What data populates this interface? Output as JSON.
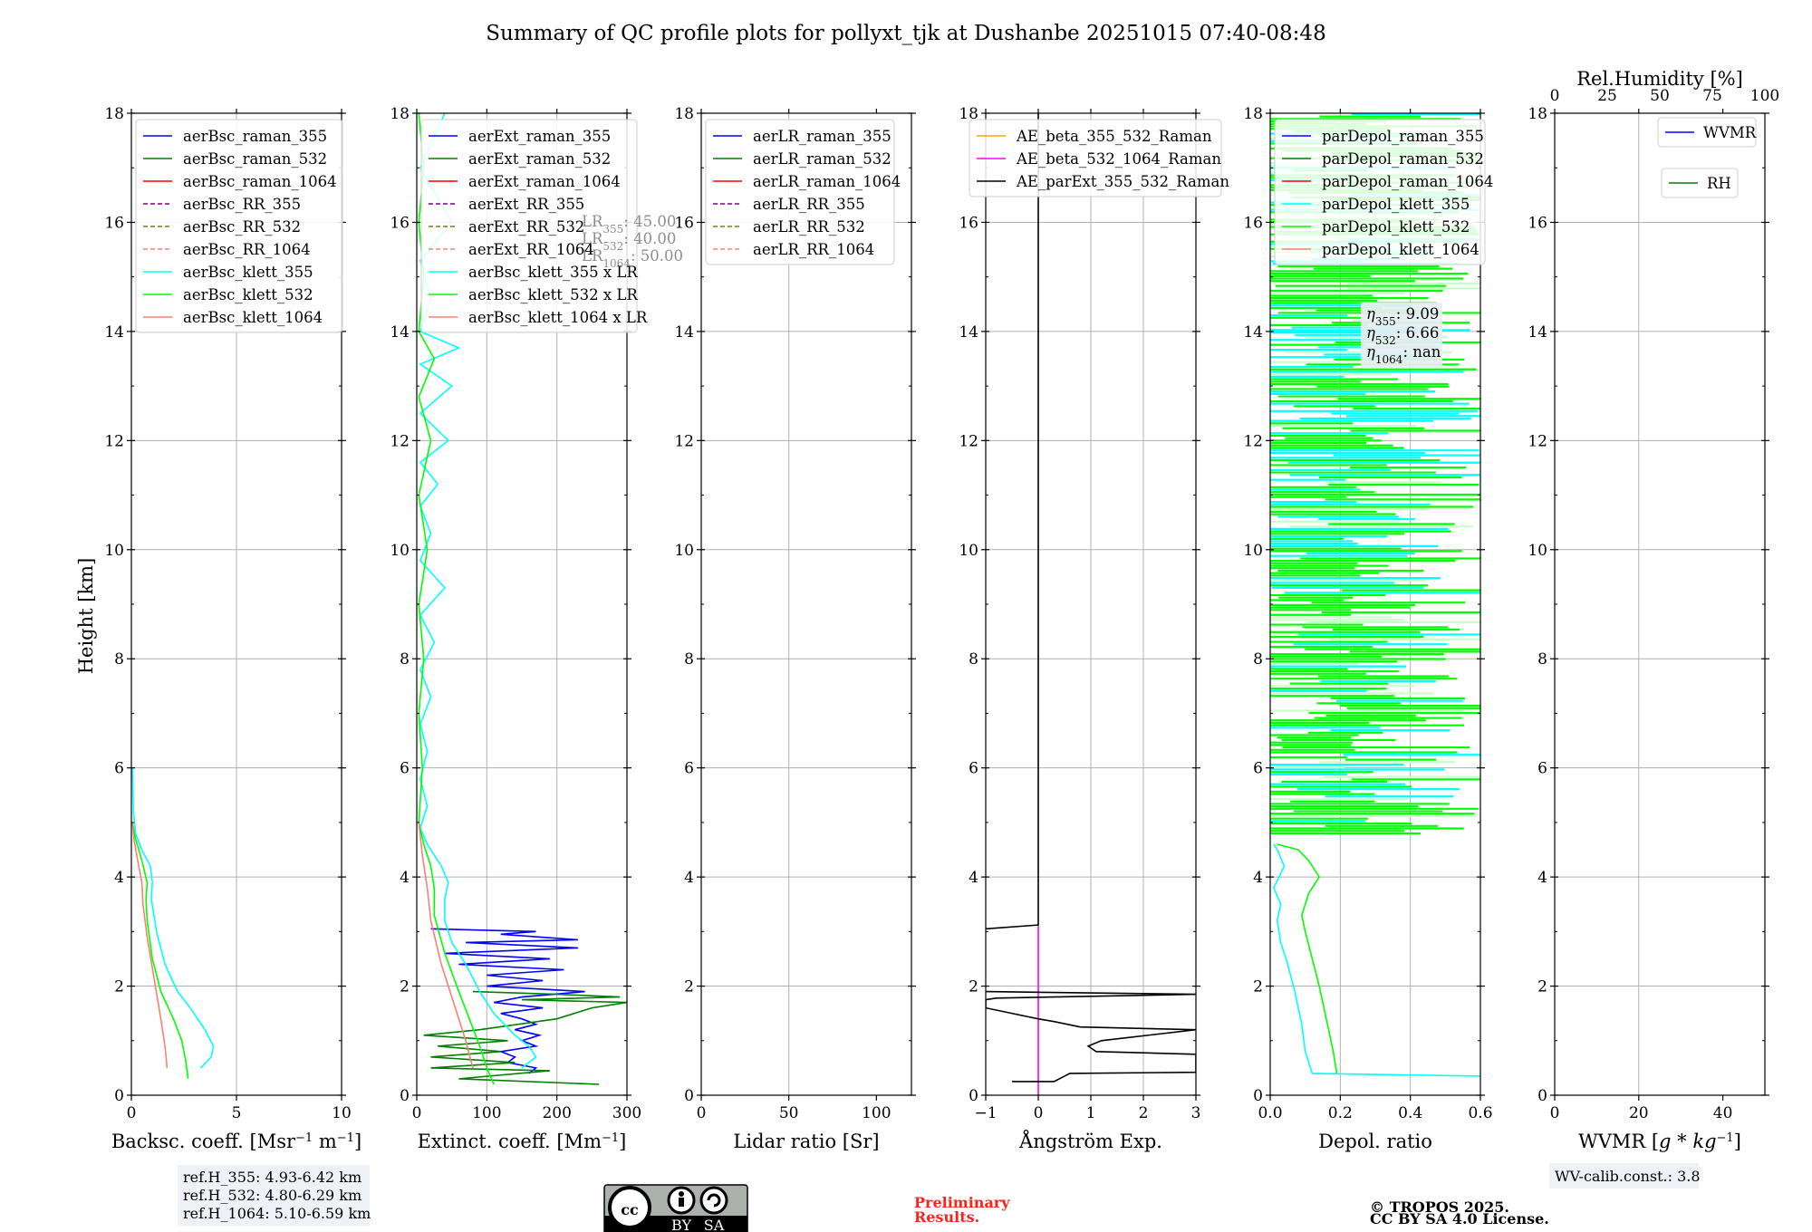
{
  "title": "Summary of QC profile plots for pollyxt_tjk at Dushanbe 20251015 07:40-08:48",
  "ylabel": "Height [km]",
  "yticks": [
    "0",
    "2",
    "4",
    "6",
    "8",
    "10",
    "12",
    "14",
    "16",
    "18"
  ],
  "colors": {
    "blue": "#0000ff",
    "green": "#008000",
    "red": "#ff0000",
    "purple": "#800080",
    "olive": "#808000",
    "salmon": "#fa8072",
    "cyan": "#00ffff",
    "lime": "#00ff00",
    "orange": "#ffa500",
    "magenta": "#ff00ff",
    "black": "#000000"
  },
  "chart_data": [
    {
      "type": "line",
      "xlabel_parts": [
        "Backsc. coeff. [Msr",
        "−1",
        " m",
        "−1",
        "]"
      ],
      "xlim": [
        0,
        10
      ],
      "xticks": [
        "0",
        "5",
        "10"
      ],
      "ylim": [
        0,
        18
      ],
      "legend": [
        "aerBsc_raman_355",
        "aerBsc_raman_532",
        "aerBsc_raman_1064",
        "aerBsc_RR_355",
        "aerBsc_RR_532",
        "aerBsc_RR_1064",
        "aerBsc_klett_355",
        "aerBsc_klett_532",
        "aerBsc_klett_1064"
      ],
      "series": [
        {
          "name": "aerBsc_klett_355",
          "color": "cyan",
          "points": [
            [
              3.3,
              0.5
            ],
            [
              3.8,
              0.7
            ],
            [
              3.9,
              0.9
            ],
            [
              3.5,
              1.2
            ],
            [
              2.8,
              1.6
            ],
            [
              2.2,
              1.9
            ],
            [
              1.6,
              2.4
            ],
            [
              1.2,
              3.0
            ],
            [
              0.95,
              3.6
            ],
            [
              1.0,
              3.9
            ],
            [
              0.9,
              4.2
            ],
            [
              0.5,
              4.5
            ],
            [
              0.2,
              4.8
            ],
            [
              0.1,
              5.2
            ],
            [
              0.05,
              6.0
            ]
          ]
        },
        {
          "name": "aerBsc_klett_532",
          "color": "lime",
          "points": [
            [
              2.7,
              0.3
            ],
            [
              2.6,
              0.6
            ],
            [
              2.4,
              1.0
            ],
            [
              2.0,
              1.4
            ],
            [
              1.4,
              1.9
            ],
            [
              1.0,
              2.5
            ],
            [
              0.75,
              3.2
            ],
            [
              0.7,
              3.6
            ],
            [
              0.75,
              3.9
            ],
            [
              0.5,
              4.3
            ],
            [
              0.2,
              4.7
            ],
            [
              0.05,
              5.0
            ]
          ]
        },
        {
          "name": "aerBsc_klett_1064",
          "color": "salmon",
          "points": [
            [
              1.7,
              0.5
            ],
            [
              1.6,
              0.9
            ],
            [
              1.4,
              1.4
            ],
            [
              1.1,
              2.1
            ],
            [
              0.75,
              2.9
            ],
            [
              0.55,
              3.5
            ],
            [
              0.5,
              3.9
            ],
            [
              0.3,
              4.3
            ],
            [
              0.12,
              4.7
            ],
            [
              0.05,
              5.0
            ]
          ]
        }
      ]
    },
    {
      "type": "line",
      "xlabel_parts": [
        "Extinct. coeff. [Mm",
        "−1",
        "]"
      ],
      "xlim": [
        0,
        300
      ],
      "xticks": [
        "0",
        "100",
        "200",
        "300"
      ],
      "ylim": [
        0,
        18
      ],
      "legend": [
        "aerExt_raman_355",
        "aerExt_raman_532",
        "aerExt_raman_1064",
        "aerExt_RR_355",
        "aerExt_RR_532",
        "aerExt_RR_1064",
        "aerBsc_klett_355 x LR",
        "aerBsc_klett_532 x LR",
        "aerBsc_klett_1064 x LR"
      ],
      "lr_note": [
        [
          "LR",
          "355",
          ": 45.00"
        ],
        [
          "LR",
          "532",
          ": 40.00"
        ],
        [
          "LR",
          "1064",
          ": 50.00"
        ]
      ],
      "series": [
        {
          "name": "aerExt_raman_355",
          "color": "blue",
          "points": [
            [
              160,
              0.4
            ],
            [
              170,
              0.5
            ],
            [
              130,
              0.6
            ],
            [
              140,
              0.7
            ],
            [
              120,
              0.8
            ],
            [
              170,
              0.9
            ],
            [
              150,
              1.0
            ],
            [
              175,
              1.1
            ],
            [
              140,
              1.2
            ],
            [
              170,
              1.3
            ],
            [
              150,
              1.4
            ],
            [
              120,
              1.5
            ],
            [
              180,
              1.6
            ],
            [
              110,
              1.7
            ],
            [
              150,
              1.8
            ],
            [
              240,
              1.9
            ],
            [
              100,
              2.0
            ],
            [
              180,
              2.1
            ],
            [
              100,
              2.2
            ],
            [
              210,
              2.3
            ],
            [
              60,
              2.4
            ],
            [
              190,
              2.5
            ],
            [
              40,
              2.6
            ],
            [
              230,
              2.7
            ],
            [
              70,
              2.8
            ],
            [
              230,
              2.85
            ],
            [
              120,
              2.95
            ],
            [
              170,
              3.0
            ],
            [
              20,
              3.05
            ]
          ]
        },
        {
          "name": "aerExt_raman_532",
          "color": "green",
          "points": [
            [
              260,
              0.2
            ],
            [
              60,
              0.3
            ],
            [
              190,
              0.45
            ],
            [
              20,
              0.5
            ],
            [
              140,
              0.6
            ],
            [
              20,
              0.7
            ],
            [
              120,
              0.8
            ],
            [
              30,
              0.9
            ],
            [
              130,
              1.0
            ],
            [
              10,
              1.1
            ],
            [
              90,
              1.2
            ],
            [
              200,
              1.4
            ],
            [
              250,
              1.6
            ],
            [
              300,
              1.7
            ],
            [
              150,
              1.75
            ],
            [
              290,
              1.8
            ],
            [
              200,
              1.85
            ],
            [
              80,
              1.9
            ]
          ]
        },
        {
          "name": "aerBsc_klett_355 x LR",
          "color": "cyan",
          "points": [
            [
              150,
              0.5
            ],
            [
              170,
              0.7
            ],
            [
              160,
              0.9
            ],
            [
              140,
              1.1
            ],
            [
              110,
              1.5
            ],
            [
              90,
              1.9
            ],
            [
              70,
              2.4
            ],
            [
              50,
              2.8
            ],
            [
              40,
              3.2
            ],
            [
              40,
              3.6
            ],
            [
              45,
              3.9
            ],
            [
              35,
              4.2
            ],
            [
              15,
              4.6
            ],
            [
              5,
              4.9
            ],
            [
              15,
              5.3
            ],
            [
              5,
              5.8
            ],
            [
              15,
              6.3
            ],
            [
              5,
              6.8
            ],
            [
              20,
              7.3
            ],
            [
              5,
              7.8
            ],
            [
              25,
              8.3
            ],
            [
              5,
              8.8
            ],
            [
              40,
              9.3
            ],
            [
              5,
              9.8
            ],
            [
              20,
              10.3
            ],
            [
              5,
              10.8
            ],
            [
              30,
              11.2
            ],
            [
              5,
              11.6
            ],
            [
              45,
              12.0
            ],
            [
              5,
              12.5
            ],
            [
              50,
              13.0
            ],
            [
              5,
              13.4
            ],
            [
              60,
              13.7
            ],
            [
              5,
              14.0
            ],
            [
              20,
              14.6
            ],
            [
              5,
              15.3
            ],
            [
              50,
              16.0
            ],
            [
              5,
              17.0
            ],
            [
              40,
              18.0
            ]
          ]
        },
        {
          "name": "aerBsc_klett_532 x LR",
          "color": "lime",
          "points": [
            [
              110,
              0.2
            ],
            [
              100,
              0.5
            ],
            [
              90,
              0.9
            ],
            [
              75,
              1.4
            ],
            [
              60,
              1.9
            ],
            [
              40,
              2.6
            ],
            [
              25,
              3.3
            ],
            [
              25,
              3.8
            ],
            [
              20,
              4.2
            ],
            [
              10,
              4.6
            ],
            [
              3,
              5.0
            ],
            [
              8,
              6.0
            ],
            [
              3,
              7.0
            ],
            [
              10,
              8.0
            ],
            [
              3,
              9.0
            ],
            [
              15,
              10.0
            ],
            [
              3,
              11.0
            ],
            [
              20,
              12.0
            ],
            [
              3,
              12.8
            ],
            [
              25,
              13.5
            ],
            [
              3,
              14.0
            ],
            [
              10,
              15.0
            ],
            [
              3,
              16.0
            ],
            [
              10,
              17.0
            ],
            [
              3,
              18.0
            ]
          ]
        },
        {
          "name": "aerBsc_klett_1064 x LR",
          "color": "salmon",
          "points": [
            [
              80,
              0.5
            ],
            [
              70,
              1.0
            ],
            [
              55,
              1.6
            ],
            [
              35,
              2.4
            ],
            [
              20,
              3.2
            ],
            [
              15,
              3.8
            ],
            [
              8,
              4.4
            ],
            [
              3,
              5.0
            ]
          ]
        }
      ]
    },
    {
      "type": "line",
      "xlabel_parts": [
        "Lidar ratio [Sr]"
      ],
      "xlim": [
        0,
        120
      ],
      "xticks": [
        "0",
        "50",
        "100"
      ],
      "ylim": [
        0,
        18
      ],
      "legend": [
        "aerLR_raman_355",
        "aerLR_raman_532",
        "aerLR_raman_1064",
        "aerLR_RR_355",
        "aerLR_RR_532",
        "aerLR_RR_1064"
      ],
      "series": []
    },
    {
      "type": "line",
      "xlabel_parts": [
        "Ångström Exp."
      ],
      "xlim": [
        -1,
        3
      ],
      "xticks": [
        "−1",
        "0",
        "1",
        "2",
        "3"
      ],
      "ylim": [
        0,
        18
      ],
      "legend": [
        "AE_beta_355_532_Raman",
        "AE_beta_532_1064_Raman",
        "AE_parExt_355_532_Raman"
      ],
      "series": [
        {
          "name": "AE_beta_532_1064_Raman",
          "color": "magenta",
          "points": [
            [
              0,
              0.0
            ],
            [
              0,
              3.1
            ]
          ]
        },
        {
          "name": "AE_parExt_355_532_Raman",
          "color": "black",
          "points": [
            [
              -0.5,
              0.25
            ],
            [
              0.3,
              0.25
            ],
            [
              0.6,
              0.4
            ],
            [
              3,
              0.42
            ],
            [
              3,
              0.75
            ],
            [
              1.1,
              0.8
            ],
            [
              0.95,
              0.9
            ],
            [
              1.2,
              1.0
            ],
            [
              3,
              1.2
            ],
            [
              0.8,
              1.25
            ],
            [
              0.3,
              1.35
            ],
            [
              0,
              1.4
            ],
            [
              -1,
              1.6
            ],
            [
              -1,
              1.75
            ],
            [
              -0.8,
              1.78
            ],
            [
              3,
              1.85
            ],
            [
              -1,
              1.9
            ]
          ]
        },
        {
          "name": "AE_parExt_355_532_Raman_upper",
          "color": "black",
          "points": [
            [
              -1,
              3.05
            ],
            [
              0,
              3.12
            ],
            [
              0,
              18
            ]
          ]
        }
      ]
    },
    {
      "type": "line",
      "xlabel_parts": [
        "Depol. ratio"
      ],
      "xlim": [
        0,
        0.6
      ],
      "xticks": [
        "0.0",
        "0.2",
        "0.4",
        "0.6"
      ],
      "ylim": [
        0,
        18
      ],
      "legend": [
        "parDepol_raman_355",
        "parDepol_raman_532",
        "parDepol_raman_1064",
        "parDepol_klett_355",
        "parDepol_klett_532",
        "parDepol_klett_1064"
      ],
      "eta": [
        [
          "η",
          "355",
          ": 9.09"
        ],
        [
          "η",
          "532",
          ": 6.66"
        ],
        [
          "η",
          "1064",
          ": nan"
        ]
      ],
      "series": [
        {
          "name": "parDepol_klett_355",
          "color": "cyan",
          "points": [
            [
              0.6,
              0.35
            ],
            [
              0.12,
              0.4
            ],
            [
              0.1,
              0.8
            ],
            [
              0.09,
              1.3
            ],
            [
              0.07,
              1.9
            ],
            [
              0.05,
              2.4
            ],
            [
              0.03,
              2.8
            ],
            [
              0.02,
              3.2
            ],
            [
              0.03,
              3.5
            ],
            [
              0.01,
              3.8
            ],
            [
              0.04,
              4.2
            ],
            [
              0.02,
              4.5
            ],
            [
              0.01,
              4.6
            ]
          ]
        },
        {
          "name": "parDepol_klett_532",
          "color": "lime",
          "points": [
            [
              0.19,
              0.4
            ],
            [
              0.18,
              0.8
            ],
            [
              0.16,
              1.4
            ],
            [
              0.14,
              2.0
            ],
            [
              0.12,
              2.5
            ],
            [
              0.1,
              3.0
            ],
            [
              0.09,
              3.3
            ],
            [
              0.11,
              3.7
            ],
            [
              0.14,
              4.0
            ],
            [
              0.11,
              4.3
            ],
            [
              0.08,
              4.5
            ],
            [
              0.02,
              4.6
            ]
          ]
        }
      ],
      "noise_from": 4.8
    },
    {
      "type": "line",
      "xlabel_parts": [
        "WVMR [",
        "g * kg",
        "−1",
        "]"
      ],
      "xlim": [
        0,
        50
      ],
      "xticks": [
        "0",
        "20",
        "40"
      ],
      "top_label": "Rel.Humidity [%]",
      "top_xlim": [
        0,
        100
      ],
      "top_xticks": [
        "0",
        "25",
        "50",
        "75",
        "100"
      ],
      "ylim": [
        0,
        18
      ],
      "legend": [
        "WVMR",
        "RH"
      ],
      "series": []
    }
  ],
  "footer": {
    "refh": [
      "ref.H_355: 4.93-6.42 km",
      "ref.H_532: 4.80-6.29 km",
      "ref.H_1064: 5.10-6.59 km"
    ],
    "cc_labels": [
      "cc",
      "BY",
      "SA"
    ],
    "prelim": [
      "Preliminary",
      "Results."
    ],
    "copyright": [
      "© TROPOS 2025.",
      "CC BY SA 4.0 License."
    ],
    "wv_calib": "WV-calib.const.: 3.8"
  }
}
